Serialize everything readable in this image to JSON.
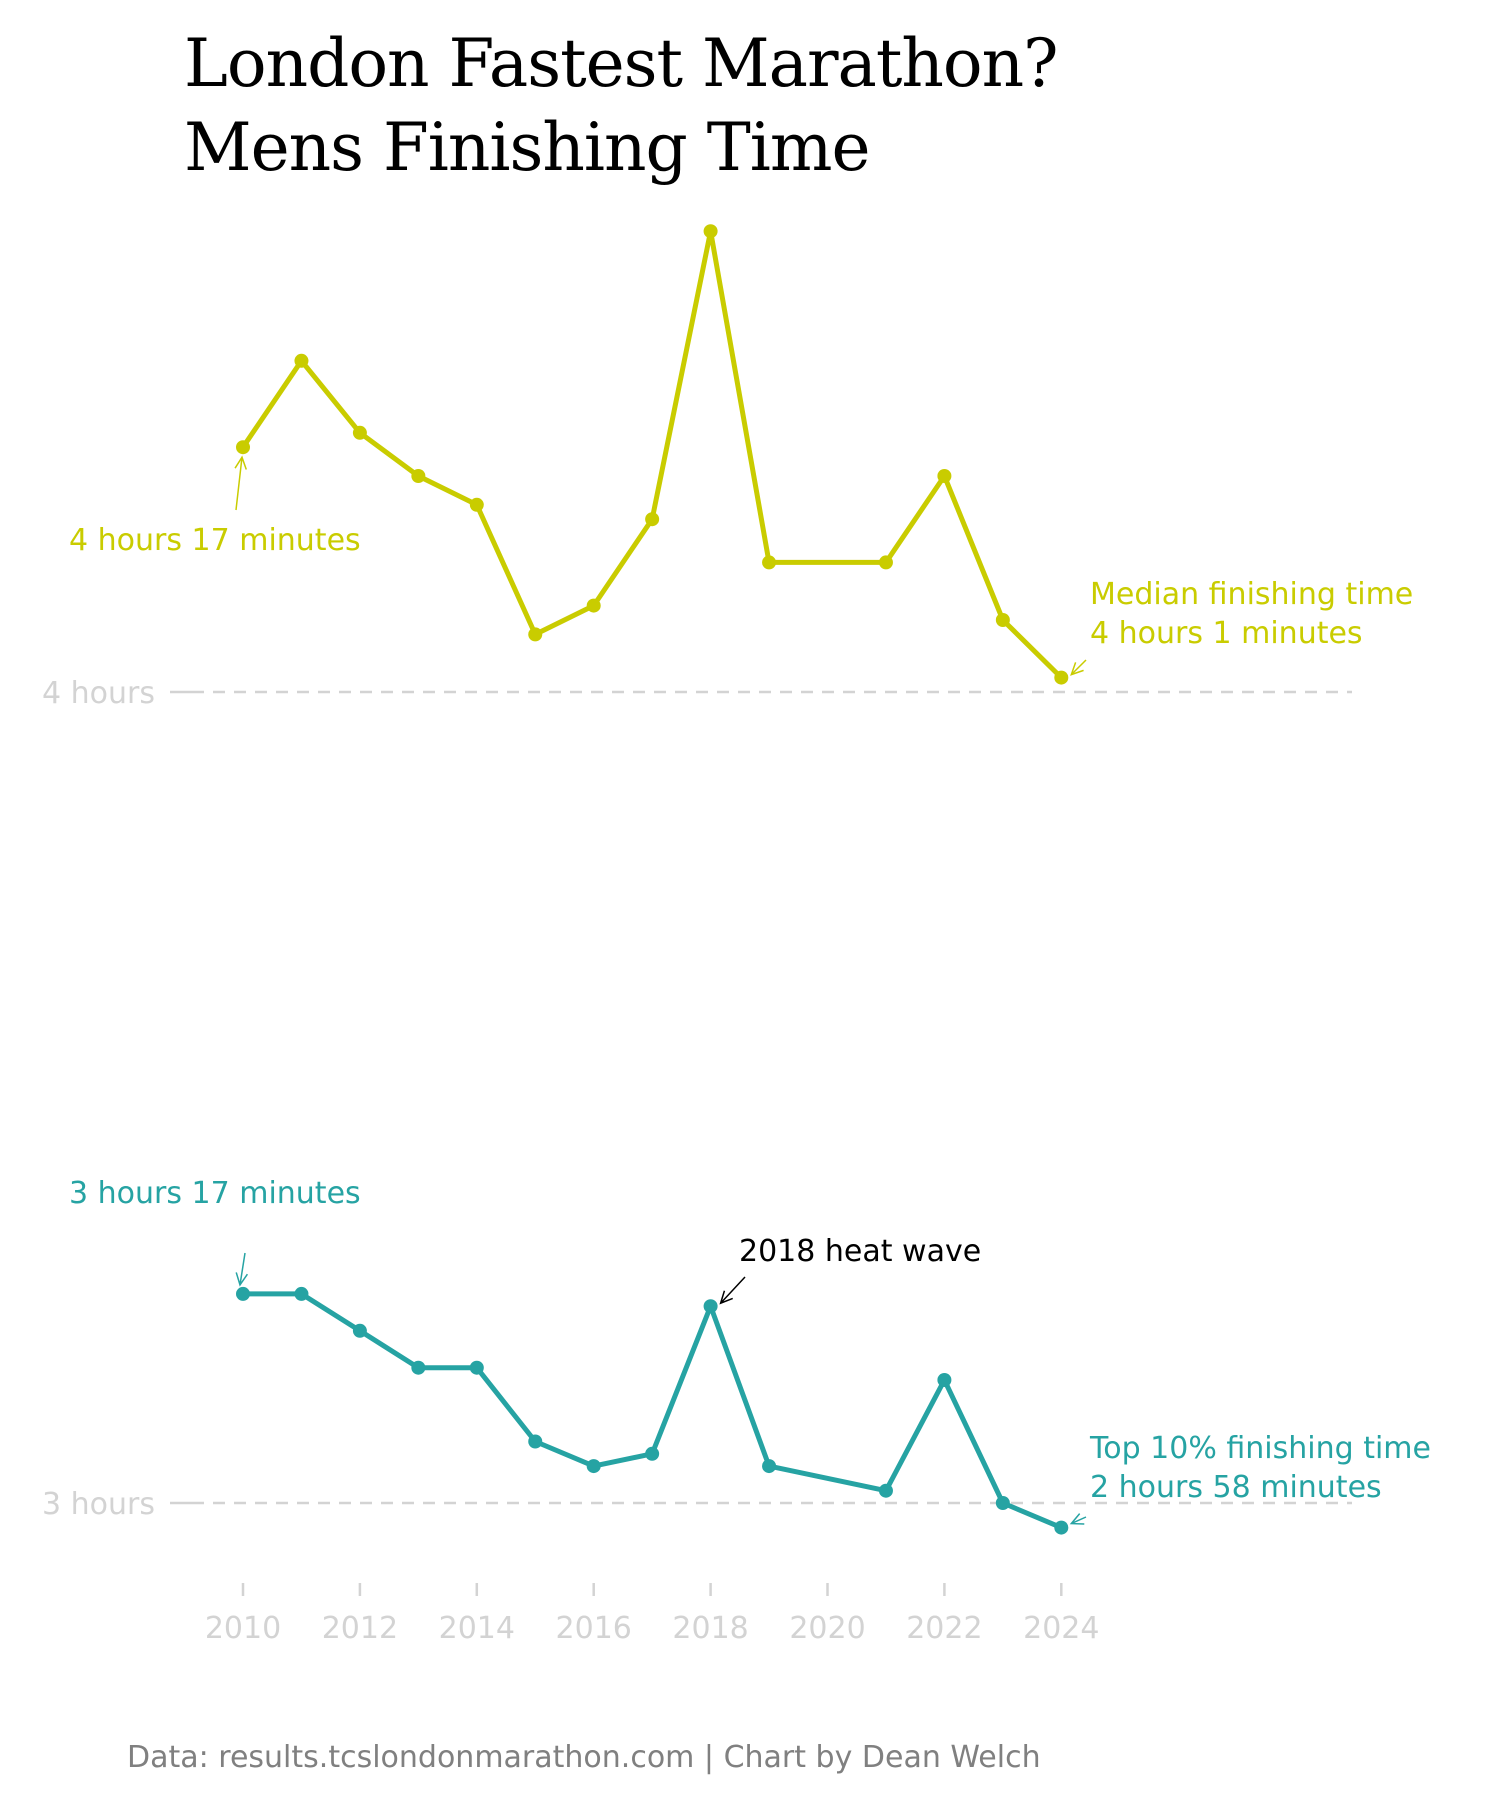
{
  "title": {
    "line1": "London Fastest Marathon?",
    "line2": "Mens Finishing Time"
  },
  "caption": "Data: results.tcslondonmarathon.com | Chart by Dean Welch",
  "colors": {
    "median": "#c9cc00",
    "top10": "#26a3a3",
    "reference": "#d3d3d3",
    "annotation": "#000000",
    "caption": "#808080"
  },
  "chart_data": {
    "type": "line",
    "x": [
      2010,
      2011,
      2012,
      2013,
      2014,
      2015,
      2016,
      2017,
      2018,
      2019,
      2021,
      2022,
      2023,
      2024
    ],
    "x_ticks": [
      "2010",
      "2012",
      "2014",
      "2016",
      "2018",
      "2020",
      "2022",
      "2024"
    ],
    "ylabel": "",
    "grid": false,
    "series": [
      {
        "name": "Median finishing time",
        "color": "#c9cc00",
        "values_minutes": [
          257,
          263,
          258,
          255,
          253,
          244,
          246,
          252,
          272,
          249,
          249,
          255,
          245,
          241
        ]
      },
      {
        "name": "Top 10% finishing time",
        "color": "#26a3a3",
        "values_minutes": [
          197,
          197,
          194,
          191,
          191,
          185,
          183,
          184,
          196,
          183,
          181,
          190,
          180,
          178
        ]
      }
    ],
    "reference_lines": [
      {
        "label": "4 hours",
        "value_minutes": 240
      },
      {
        "label": "3 hours",
        "value_minutes": 180
      }
    ],
    "annotations": {
      "median_start": "4 hours 17 minutes",
      "median_end_line1": "Median finishing time",
      "median_end_line2": "4 hours 1 minutes",
      "top10_start": "3 hours 17 minutes",
      "top10_end_line1": "Top 10% finishing time",
      "top10_end_line2": "2 hours 58 minutes",
      "heat_wave": "2018 heat wave"
    }
  }
}
